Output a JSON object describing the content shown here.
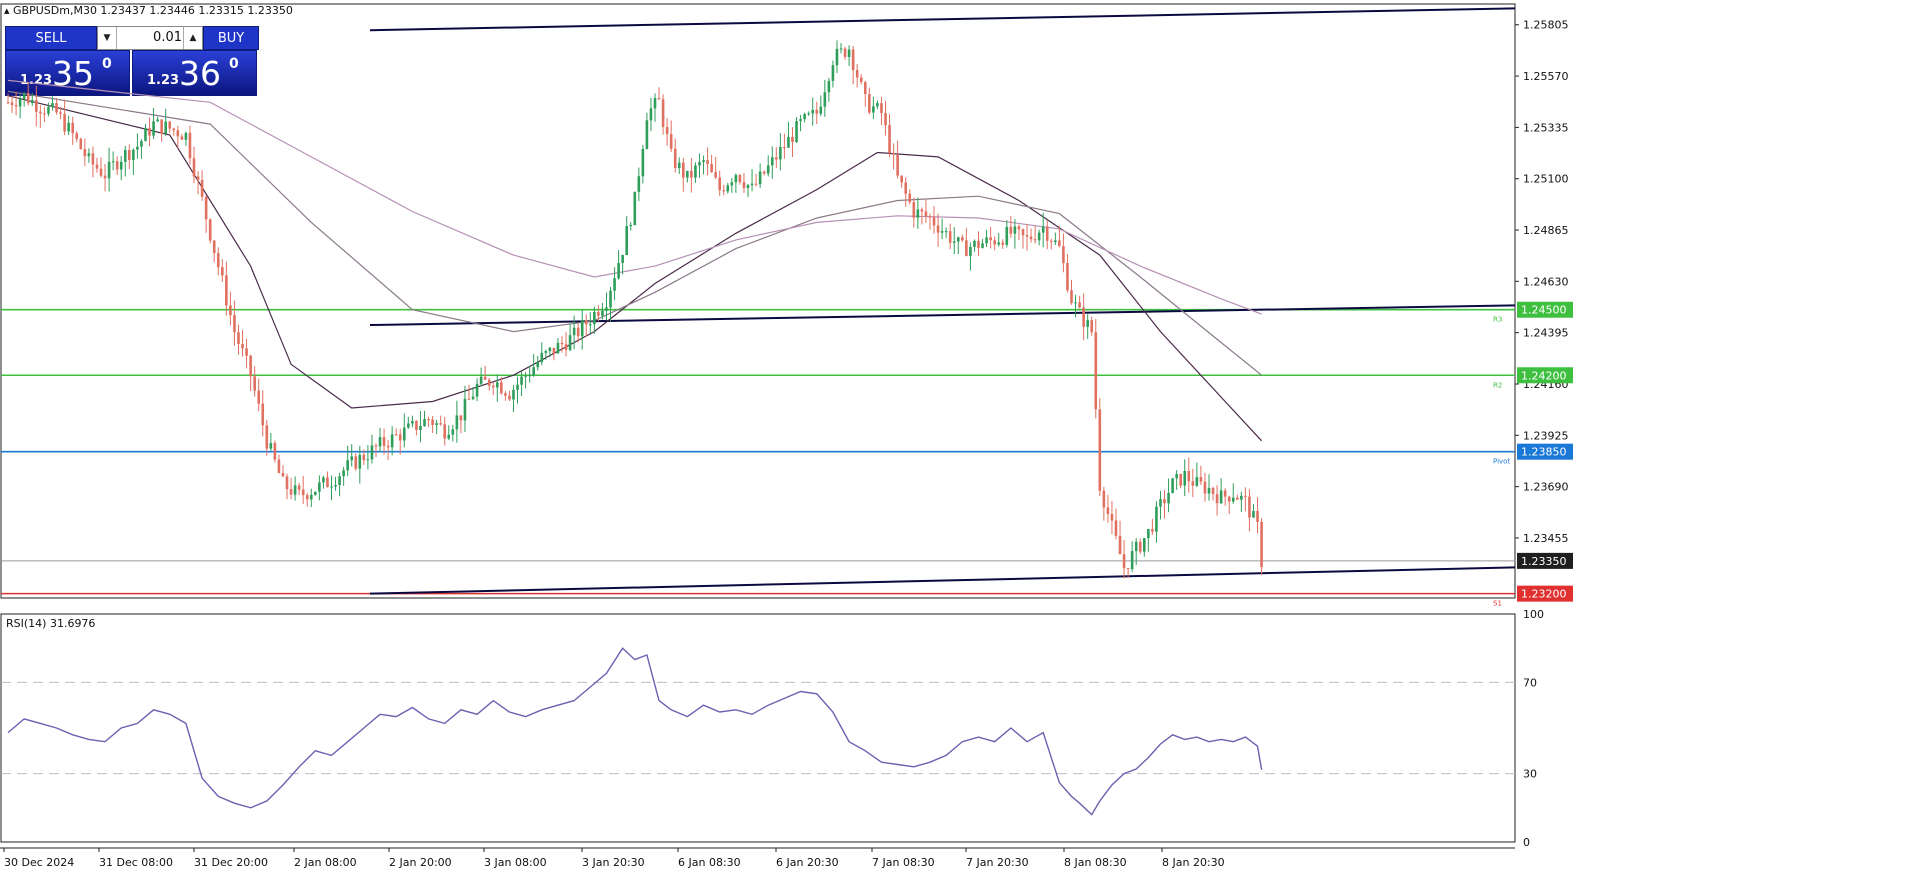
{
  "header": {
    "symbol_info": "GBPUSDm,M30  1.23437 1.23446 1.23315 1.23350"
  },
  "trade_panel": {
    "sell_label": "SELL",
    "buy_label": "BUY",
    "lot": "0.01",
    "sell_prefix": "1.23",
    "sell_big": "35",
    "sell_sup": "0",
    "buy_prefix": "1.23",
    "buy_big": "36",
    "buy_sup": "0"
  },
  "chart_data": [
    {
      "type": "candlestick",
      "symbol": "GBPUSDm",
      "timeframe": "M30",
      "ylim": [
        1.2318,
        1.259
      ],
      "price_ticks": [
        "1.25805",
        "1.25570",
        "1.25335",
        "1.25100",
        "1.24865",
        "1.24630",
        "1.24395",
        "1.24160",
        "1.23925",
        "1.23690",
        "1.23455"
      ],
      "x_ticks": [
        "30 Dec 2024",
        "31 Dec 08:00",
        "31 Dec 20:00",
        "2 Jan 08:00",
        "2 Jan 20:00",
        "3 Jan 08:00",
        "3 Jan 20:30",
        "6 Jan 08:30",
        "6 Jan 20:30",
        "7 Jan 08:30",
        "7 Jan 20:30",
        "8 Jan 08:30",
        "8 Jan 20:30"
      ],
      "close_path": [
        [
          0,
          1.2545
        ],
        [
          8,
          1.2548
        ],
        [
          16,
          1.2543
        ],
        [
          24,
          1.254
        ],
        [
          32,
          1.253
        ],
        [
          40,
          1.2518
        ],
        [
          48,
          1.2512
        ],
        [
          56,
          1.252
        ],
        [
          64,
          1.2525
        ],
        [
          72,
          1.2535
        ],
        [
          80,
          1.2533
        ],
        [
          88,
          1.253
        ],
        [
          96,
          1.25
        ],
        [
          104,
          1.247
        ],
        [
          112,
          1.244
        ],
        [
          120,
          1.242
        ],
        [
          128,
          1.239
        ],
        [
          136,
          1.237
        ],
        [
          144,
          1.2365
        ],
        [
          152,
          1.2368
        ],
        [
          160,
          1.2372
        ],
        [
          168,
          1.2378
        ],
        [
          176,
          1.2383
        ],
        [
          184,
          1.2388
        ],
        [
          192,
          1.2392
        ],
        [
          200,
          1.2396
        ],
        [
          208,
          1.24
        ],
        [
          216,
          1.2395
        ],
        [
          224,
          1.2402
        ],
        [
          232,
          1.2415
        ],
        [
          240,
          1.2418
        ],
        [
          248,
          1.2412
        ],
        [
          256,
          1.242
        ],
        [
          264,
          1.2428
        ],
        [
          272,
          1.2433
        ],
        [
          280,
          1.2438
        ],
        [
          288,
          1.2446
        ],
        [
          296,
          1.2455
        ],
        [
          304,
          1.2478
        ],
        [
          310,
          1.25
        ],
        [
          316,
          1.254
        ],
        [
          322,
          1.2545
        ],
        [
          328,
          1.252
        ],
        [
          336,
          1.251
        ],
        [
          344,
          1.2518
        ],
        [
          352,
          1.2505
        ],
        [
          360,
          1.2513
        ],
        [
          368,
          1.2505
        ],
        [
          376,
          1.2515
        ],
        [
          384,
          1.2525
        ],
        [
          392,
          1.2535
        ],
        [
          400,
          1.254
        ],
        [
          408,
          1.2565
        ],
        [
          416,
          1.257
        ],
        [
          424,
          1.2545
        ],
        [
          432,
          1.254
        ],
        [
          440,
          1.251
        ],
        [
          448,
          1.2495
        ],
        [
          456,
          1.2492
        ],
        [
          464,
          1.2485
        ],
        [
          472,
          1.2478
        ],
        [
          480,
          1.248
        ],
        [
          488,
          1.2482
        ],
        [
          496,
          1.2485
        ],
        [
          504,
          1.2482
        ],
        [
          512,
          1.2488
        ],
        [
          520,
          1.2478
        ],
        [
          526,
          1.2455
        ],
        [
          530,
          1.2448
        ],
        [
          536,
          1.244
        ],
        [
          540,
          1.237
        ],
        [
          546,
          1.235
        ],
        [
          552,
          1.2332
        ],
        [
          558,
          1.234
        ],
        [
          564,
          1.2348
        ],
        [
          570,
          1.236
        ],
        [
          576,
          1.237
        ],
        [
          582,
          1.2374
        ],
        [
          588,
          1.237
        ],
        [
          594,
          1.2368
        ],
        [
          600,
          1.2364
        ],
        [
          606,
          1.2366
        ],
        [
          612,
          1.2362
        ],
        [
          618,
          1.235
        ],
        [
          620,
          1.2335
        ]
      ],
      "moving_averages": [
        {
          "color": "#4a2a4a",
          "points": [
            [
              0,
              1.2548
            ],
            [
              80,
              1.253
            ],
            [
              120,
              1.247
            ],
            [
              140,
              1.2425
            ],
            [
              170,
              1.2405
            ],
            [
              210,
              1.2408
            ],
            [
              250,
              1.242
            ],
            [
              290,
              1.244
            ],
            [
              320,
              1.2462
            ],
            [
              360,
              1.2485
            ],
            [
              400,
              1.2505
            ],
            [
              430,
              1.2522
            ],
            [
              460,
              1.252
            ],
            [
              500,
              1.25
            ],
            [
              540,
              1.2475
            ],
            [
              570,
              1.244
            ],
            [
              600,
              1.241
            ],
            [
              620,
              1.239
            ]
          ]
        },
        {
          "color": "#8a7a8a",
          "points": [
            [
              0,
              1.255
            ],
            [
              100,
              1.2535
            ],
            [
              150,
              1.249
            ],
            [
              200,
              1.245
            ],
            [
              250,
              1.244
            ],
            [
              290,
              1.2445
            ],
            [
              320,
              1.2458
            ],
            [
              360,
              1.2478
            ],
            [
              400,
              1.2492
            ],
            [
              440,
              1.25
            ],
            [
              480,
              1.2502
            ],
            [
              520,
              1.2494
            ],
            [
              560,
              1.2465
            ],
            [
              600,
              1.2435
            ],
            [
              620,
              1.242
            ]
          ]
        },
        {
          "color": "#b690b6",
          "points": [
            [
              0,
              1.2555
            ],
            [
              100,
              1.2545
            ],
            [
              150,
              1.252
            ],
            [
              200,
              1.2495
            ],
            [
              250,
              1.2475
            ],
            [
              290,
              1.2465
            ],
            [
              320,
              1.247
            ],
            [
              360,
              1.2482
            ],
            [
              400,
              1.249
            ],
            [
              440,
              1.2493
            ],
            [
              480,
              1.2492
            ],
            [
              520,
              1.2487
            ],
            [
              560,
              1.247
            ],
            [
              600,
              1.2455
            ],
            [
              620,
              1.2448
            ]
          ]
        }
      ],
      "horizontal_lines": [
        {
          "price": 1.245,
          "label": "1.24500",
          "color": "#3fbf3f",
          "tag": "R3"
        },
        {
          "price": 1.242,
          "label": "1.24200",
          "color": "#3fbf3f",
          "tag": "R2"
        },
        {
          "price": 1.2385,
          "label": "1.23850",
          "color": "#1a78d6",
          "tag": "Pivot"
        },
        {
          "price": 1.2335,
          "label": "1.23350",
          "color": "#999999",
          "tag": ""
        },
        {
          "price": 1.232,
          "label": "1.23200",
          "color": "#e03030",
          "tag": "S1"
        }
      ],
      "trend_lines": [
        {
          "color": "#0a0a40",
          "from": [
            190,
            1.2578
          ],
          "to": [
            960,
            1.2588
          ]
        },
        {
          "color": "#0a0a40",
          "from": [
            190,
            1.2443
          ],
          "to": [
            960,
            1.2452
          ]
        },
        {
          "color": "#0a0a40",
          "from": [
            190,
            1.232
          ],
          "to": [
            960,
            1.2332
          ]
        }
      ]
    },
    {
      "type": "line",
      "title": "RSI(14) 31.6976",
      "ylim": [
        0,
        100
      ],
      "y_ticks": [
        "100",
        "70",
        "30",
        "0"
      ],
      "levels": [
        70,
        30
      ],
      "x": [
        0,
        8,
        16,
        24,
        32,
        40,
        48,
        56,
        64,
        72,
        80,
        88,
        96,
        104,
        112,
        120,
        128,
        136,
        144,
        152,
        160,
        168,
        176,
        184,
        192,
        200,
        208,
        216,
        224,
        232,
        240,
        248,
        256,
        264,
        272,
        280,
        288,
        296,
        304,
        310,
        316,
        322,
        328,
        336,
        344,
        352,
        360,
        368,
        376,
        384,
        392,
        400,
        408,
        416,
        424,
        432,
        440,
        448,
        456,
        464,
        472,
        480,
        488,
        496,
        504,
        512,
        520,
        526,
        530,
        536,
        540,
        546,
        552,
        558,
        564,
        570,
        576,
        582,
        588,
        594,
        600,
        606,
        612,
        618,
        620
      ],
      "values": [
        48,
        54,
        52,
        50,
        47,
        45,
        44,
        50,
        52,
        58,
        56,
        52,
        28,
        20,
        17,
        15,
        18,
        25,
        33,
        40,
        38,
        44,
        50,
        56,
        55,
        59,
        54,
        52,
        58,
        56,
        62,
        57,
        55,
        58,
        60,
        62,
        68,
        74,
        85,
        80,
        82,
        62,
        58,
        55,
        60,
        57,
        58,
        56,
        60,
        63,
        66,
        65,
        57,
        44,
        40,
        35,
        34,
        33,
        35,
        38,
        44,
        46,
        44,
        50,
        44,
        48,
        26,
        20,
        17,
        12,
        18,
        25,
        30,
        32,
        37,
        43,
        47,
        45,
        46,
        44,
        45,
        44,
        46,
        42,
        31.7
      ]
    }
  ]
}
